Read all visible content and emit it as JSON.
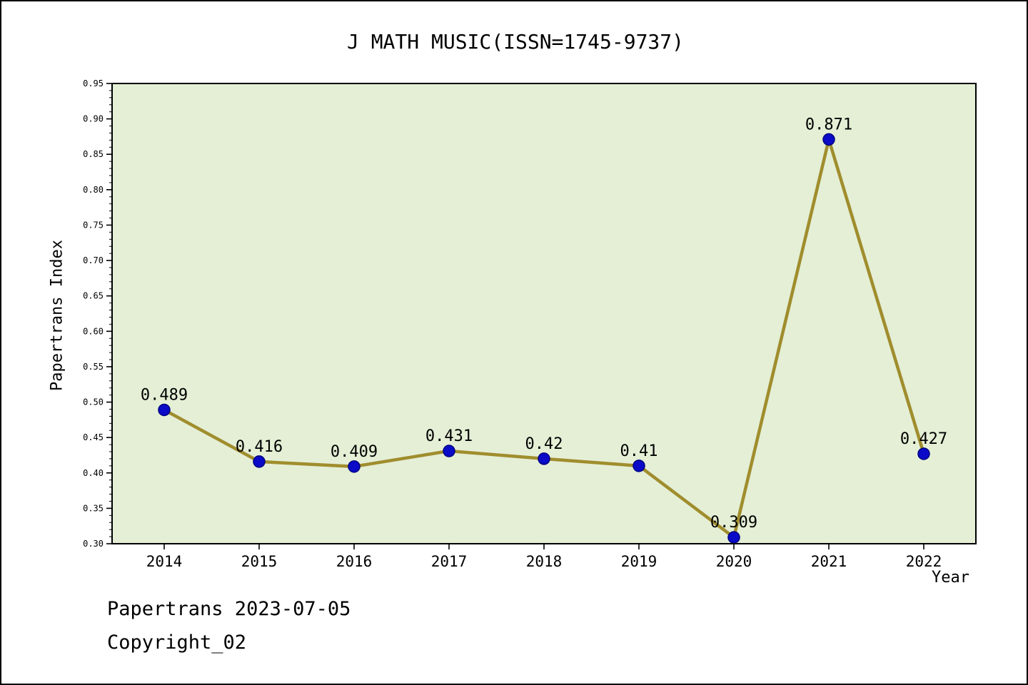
{
  "title": "J MATH MUSIC(ISSN=1745-9737)",
  "footer": {
    "line1": "Papertrans 2023-07-05",
    "line2": "Copyright_02"
  },
  "chart_data": {
    "type": "line",
    "title": "J MATH MUSIC(ISSN=1745-9737)",
    "x": [
      2014,
      2015,
      2016,
      2017,
      2018,
      2019,
      2020,
      2021,
      2022
    ],
    "series": [
      {
        "name": "Papertrans Index",
        "values": [
          0.489,
          0.416,
          0.409,
          0.431,
          0.42,
          0.41,
          0.309,
          0.871,
          0.427
        ]
      }
    ],
    "point_labels": [
      "0.489",
      "0.416",
      "0.409",
      "0.431",
      "0.42",
      "0.41",
      "0.309",
      "0.871",
      "0.427"
    ],
    "xlabel": "Year",
    "ylabel": "Papertrans Index",
    "ylim": [
      0.3,
      0.95
    ],
    "ytick_step": 0.05,
    "yminor_step": 0.01,
    "grid": false,
    "legend_position": "none",
    "colors": {
      "line": "#a08d2d",
      "marker": "#0a0ac8",
      "marker_edge": "#000080",
      "plot_bg": "#e4efd6",
      "frame": "#000000",
      "text": "#000000"
    }
  }
}
